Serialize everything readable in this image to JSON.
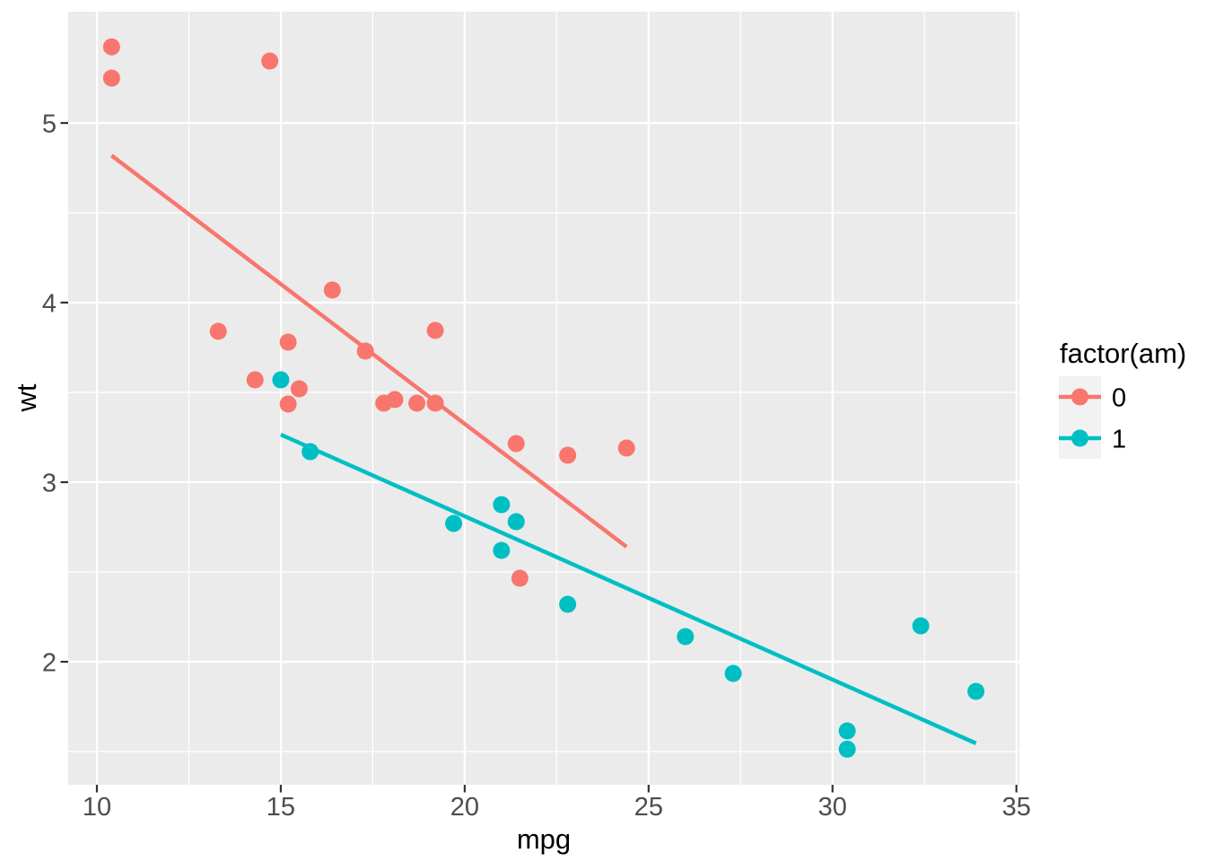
{
  "chart_data": {
    "type": "scatter",
    "xlabel": "mpg",
    "ylabel": "wt",
    "xlim": [
      9.22,
      35.08
    ],
    "ylim": [
      1.315,
      5.62
    ],
    "x_ticks": [
      10,
      15,
      20,
      25,
      30,
      35
    ],
    "y_ticks": [
      2,
      3,
      4,
      5
    ],
    "x_minor": [
      12.5,
      17.5,
      22.5,
      27.5,
      32.5
    ],
    "y_minor": [
      1.5,
      2.5,
      3.5,
      4.5
    ],
    "grid": "on",
    "legend_position": "right",
    "legend": {
      "title": "factor(am)",
      "entries": [
        {
          "label": "0",
          "color": "#F8766D"
        },
        {
          "label": "1",
          "color": "#00BFC4"
        }
      ]
    },
    "series": [
      {
        "name": "0",
        "color": "#F8766D",
        "points": [
          [
            10.4,
            5.424
          ],
          [
            10.4,
            5.25
          ],
          [
            14.7,
            5.345
          ],
          [
            16.4,
            4.07
          ],
          [
            19.2,
            3.845
          ],
          [
            13.3,
            3.84
          ],
          [
            15.2,
            3.78
          ],
          [
            17.3,
            3.73
          ],
          [
            14.3,
            3.57
          ],
          [
            15.5,
            3.52
          ],
          [
            18.1,
            3.46
          ],
          [
            18.7,
            3.44
          ],
          [
            17.8,
            3.44
          ],
          [
            19.2,
            3.44
          ],
          [
            15.2,
            3.435
          ],
          [
            21.4,
            3.215
          ],
          [
            24.4,
            3.19
          ],
          [
            22.8,
            3.15
          ],
          [
            21.5,
            2.465
          ]
        ],
        "trend": {
          "x": [
            10.4,
            24.4
          ],
          "y": [
            4.819,
            2.64
          ]
        }
      },
      {
        "name": "1",
        "color": "#00BFC4",
        "points": [
          [
            15.0,
            3.57
          ],
          [
            15.8,
            3.17
          ],
          [
            21.0,
            2.875
          ],
          [
            21.4,
            2.78
          ],
          [
            19.7,
            2.77
          ],
          [
            21.0,
            2.62
          ],
          [
            22.8,
            2.32
          ],
          [
            32.4,
            2.2
          ],
          [
            26.0,
            2.14
          ],
          [
            27.3,
            1.935
          ],
          [
            33.9,
            1.835
          ],
          [
            30.4,
            1.615
          ],
          [
            30.4,
            1.513
          ]
        ],
        "trend": {
          "x": [
            15.0,
            33.9
          ],
          "y": [
            3.265,
            1.546
          ]
        }
      }
    ],
    "colors": {
      "panel_bg": "#EBEBEB",
      "grid": "#FFFFFF",
      "tick_mark": "#333333",
      "tick_text": "#4D4D4D",
      "axis_title": "#000000",
      "legend_key_bg": "#F2F2F2"
    }
  }
}
